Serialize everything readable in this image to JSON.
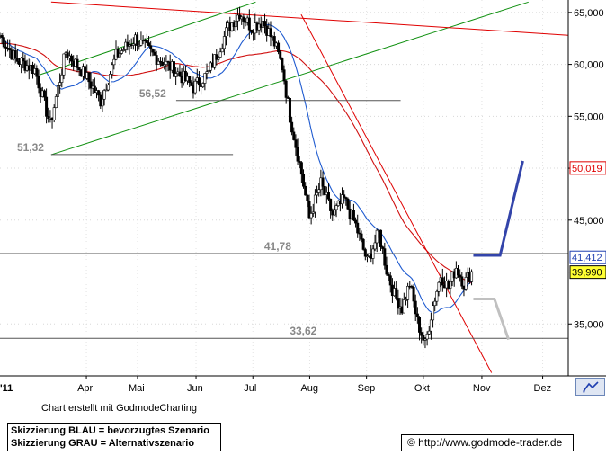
{
  "chart_data": {
    "type": "candlestick",
    "x_start_label": "'11",
    "x_tick_labels": [
      "Apr",
      "Mai",
      "Jun",
      "Jul",
      "Aug",
      "Sep",
      "Okt",
      "Nov",
      "Dez"
    ],
    "y_ticks": [
      35000,
      40000,
      45000,
      50000,
      55000,
      60000,
      65000
    ],
    "y_tick_labels": [
      "35,000",
      "40,000",
      "45,000",
      "50,000",
      "55,000",
      "60,000",
      "65,000"
    ],
    "ylim": [
      30000,
      66200
    ],
    "price_tags": [
      {
        "label": "50,019",
        "value": 50019,
        "bg": "#ffffff",
        "fg": "#e00000"
      },
      {
        "label": "41,412",
        "value": 41412,
        "bg": "#ffffff",
        "fg": "#1f3fb0"
      },
      {
        "label": "39,990",
        "value": 39990,
        "bg": "#ffff33",
        "fg": "#000000"
      }
    ],
    "horizontal_levels": [
      {
        "label": "56,52",
        "value": 56520
      },
      {
        "label": "51,32",
        "value": 51320
      },
      {
        "label": "41,78",
        "value": 41780
      },
      {
        "label": "33,62",
        "value": 33620
      }
    ],
    "scenario_blue": [
      [
        0.833,
        41600
      ],
      [
        0.88,
        41600
      ],
      [
        0.92,
        50700
      ]
    ],
    "scenario_gray": [
      [
        0.833,
        37400
      ],
      [
        0.87,
        37400
      ],
      [
        0.895,
        33500
      ]
    ],
    "colors": {
      "price": "#000000",
      "ma_blue": "#1f5bd0",
      "ma_red": "#d01010",
      "trend_green": "#109010",
      "trend_red": "#e00000",
      "level": "#888888",
      "scenario_blue": "#3344aa",
      "scenario_gray": "#c0c0c0",
      "candle_up": "#ffffff",
      "candle_down": "#000000"
    }
  },
  "footnote": "Chart erstellt mit GodmodeCharting",
  "legend": {
    "line1": "Skizzierung BLAU = bevorzugtes Szenario",
    "line2": "Skizzierung GRAU = Alternativszenario"
  },
  "url": "© http://www.godmode-trader.de"
}
